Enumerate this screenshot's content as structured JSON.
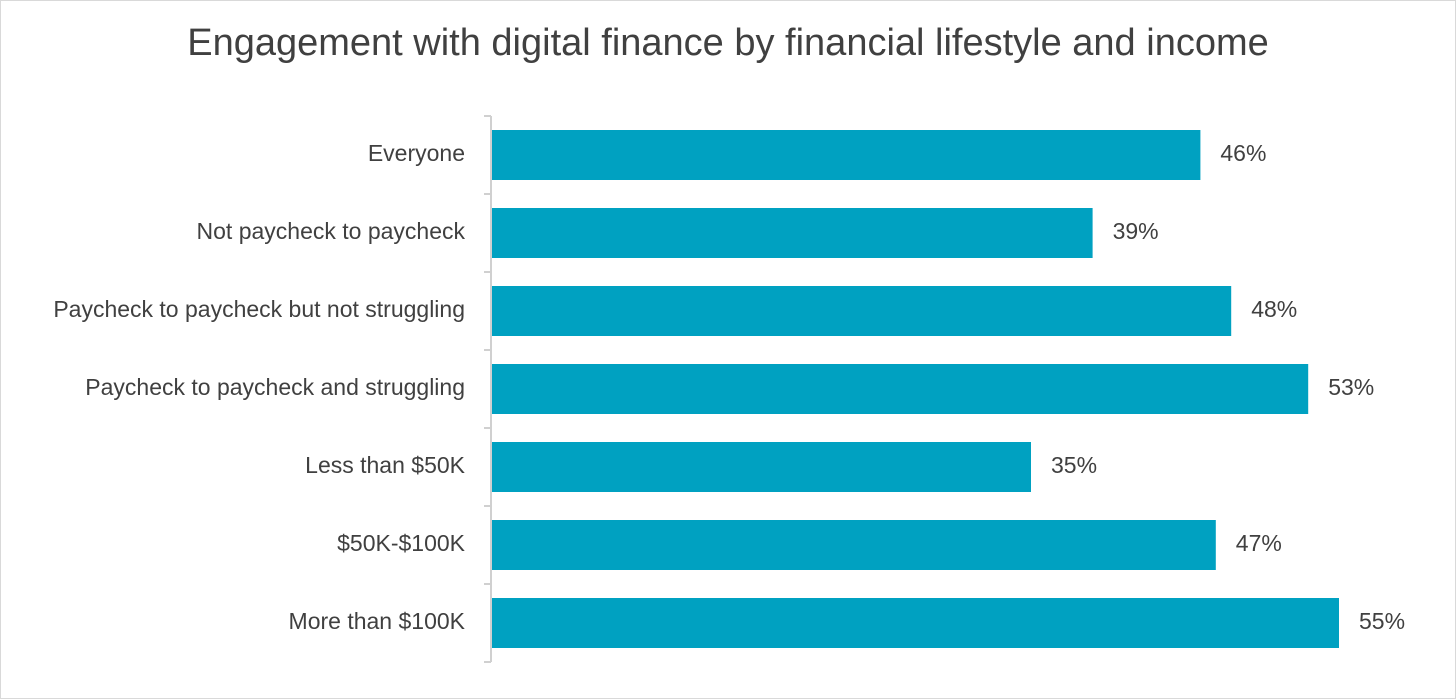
{
  "chart_data": {
    "type": "bar",
    "orientation": "horizontal",
    "title": "Engagement with digital finance by financial lifestyle and income",
    "categories": [
      "Everyone",
      "Not paycheck to paycheck",
      "Paycheck to paycheck but not struggling",
      "Paycheck to paycheck and struggling",
      "Less than $50K",
      "$50K-$100K",
      "More than $100K"
    ],
    "values": [
      46,
      39,
      48,
      53,
      35,
      47,
      55
    ],
    "value_labels": [
      "46%",
      "39%",
      "48%",
      "53%",
      "35%",
      "47%",
      "55%"
    ],
    "unit": "%",
    "xlim": [
      0,
      60
    ],
    "grid": false,
    "legend": "none",
    "bar_color": "#00A1C1"
  }
}
